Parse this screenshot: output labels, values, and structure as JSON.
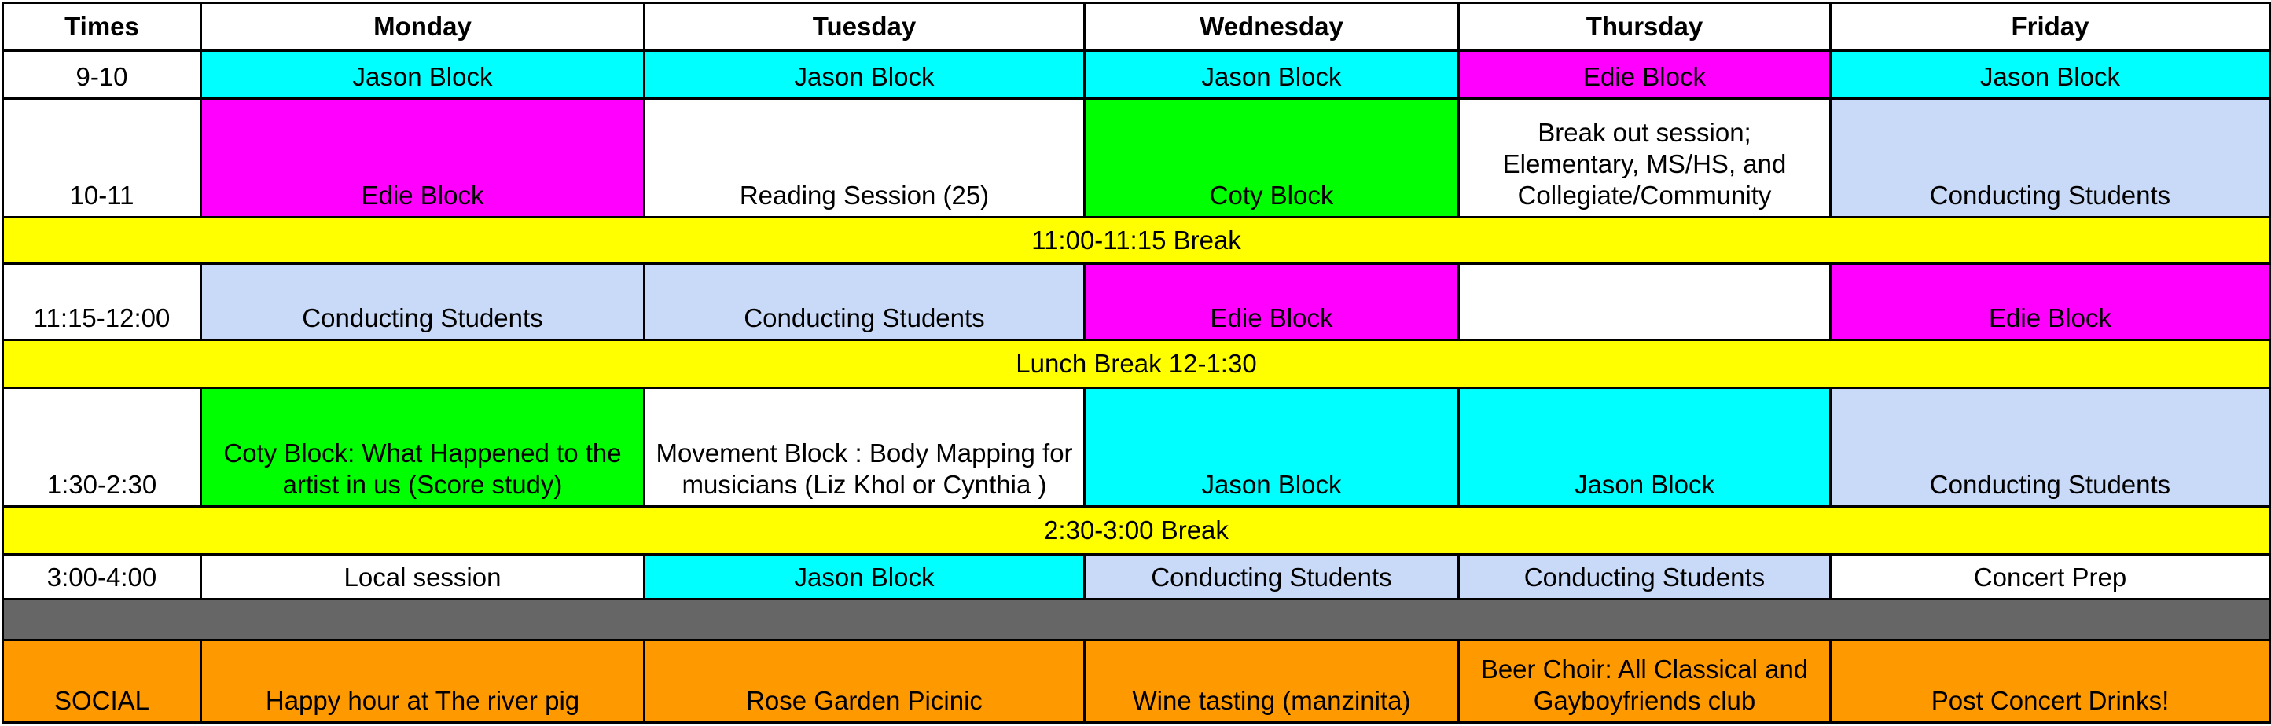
{
  "header": [
    "Times",
    "Monday",
    "Tuesday",
    "Wednesday",
    "Thursday",
    "Friday"
  ],
  "colors": {
    "jason": "#00ffff",
    "edie": "#ff00ff",
    "coty": "#00ff00",
    "conducting": "#c9daf8",
    "break": "#ffff00",
    "social": "#ff9900",
    "divider": "#666666"
  },
  "rows": [
    {
      "time": "9-10",
      "cells": [
        "Jason Block",
        "Jason Block",
        "Jason Block",
        "Edie Block",
        "Jason Block"
      ]
    },
    {
      "time": "10-11",
      "cells": [
        "Edie Block",
        "Reading Session (25)",
        "Coty Block",
        "Break out session; Elementary, MS/HS, and Collegiate/Community",
        "Conducting Students"
      ]
    },
    {
      "band": "11:00-11:15 Break"
    },
    {
      "time": "11:15-12:00",
      "cells": [
        "Conducting Students",
        "Conducting Students",
        "Edie Block",
        "",
        "Edie Block"
      ]
    },
    {
      "band": "Lunch Break 12-1:30"
    },
    {
      "time": "1:30-2:30",
      "cells": [
        "Coty Block: What Happened to the artist in us (Score study)",
        "Movement Block : Body Mapping for musicians (Liz Khol or Cynthia )",
        "Jason Block",
        "Jason Block",
        "Conducting Students"
      ]
    },
    {
      "band": "2:30-3:00 Break"
    },
    {
      "time": "3:00-4:00",
      "cells": [
        "Local session",
        "Jason Block",
        "Conducting Students",
        "Conducting Students",
        "Concert Prep"
      ]
    },
    {
      "time": "SOCIAL",
      "cells": [
        "Happy hour at The river pig",
        "Rose Garden Picinic",
        "Wine tasting (manzinita)",
        "Beer Choir: All Classical and Gayboyfriends club",
        "Post Concert Drinks!"
      ]
    }
  ]
}
